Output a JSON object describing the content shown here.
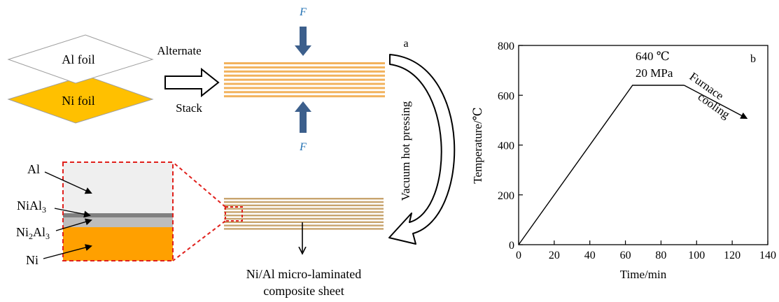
{
  "schematic": {
    "panel_label": "a",
    "al_foil_label": "Al foil",
    "ni_foil_label": "Ni foil",
    "alternate_label": "Alternate",
    "stack_label": "Stack",
    "force_label": "F",
    "process_label": "Vacuum hot pressing",
    "product_label_line1": "Ni/Al micro-laminated",
    "product_label_line2": "composite sheet",
    "inset_labels": {
      "al": "Al",
      "nial3_base": "NiAl",
      "nial3_sub": "3",
      "ni2al3_a": "Ni",
      "ni2al3_sub1": "2",
      "ni2al3_b": "Al",
      "ni2al3_sub2": "3",
      "ni": "Ni"
    },
    "colors": {
      "ni_foil": "#FFC000",
      "al_foil": "#FFFFFF",
      "stack_stripe": "#F2B25C",
      "pressed_stripe": "#C8A46E",
      "force_arrow": "#3C5F8C",
      "force_text": "#1F6FB2",
      "inset_al": "#EFEFEF",
      "inset_nial3": "#808080",
      "inset_ni2al3": "#BDBDBD",
      "inset_ni": "#FFA000",
      "zoom_box": "#E0201C"
    }
  },
  "chart_data": {
    "type": "line",
    "panel_label": "b",
    "xlabel": "Time/min",
    "ylabel": "Temperature/℃",
    "xlim": [
      0,
      140
    ],
    "ylim": [
      0,
      800
    ],
    "x_ticks": [
      0,
      20,
      40,
      60,
      80,
      100,
      120,
      140
    ],
    "y_ticks": [
      0,
      200,
      400,
      600,
      800
    ],
    "series": [
      {
        "x": [
          0,
          64,
          93
        ],
        "y": [
          0,
          640,
          640
        ]
      }
    ],
    "annotations": {
      "temperature": "640 ℃",
      "pressure": "20 MPa",
      "cooling_line1": "Furnace",
      "cooling_line2": "cooling"
    },
    "cooling_arrow": {
      "from": [
        93,
        640
      ],
      "to": [
        128,
        508
      ]
    },
    "grid": false
  }
}
